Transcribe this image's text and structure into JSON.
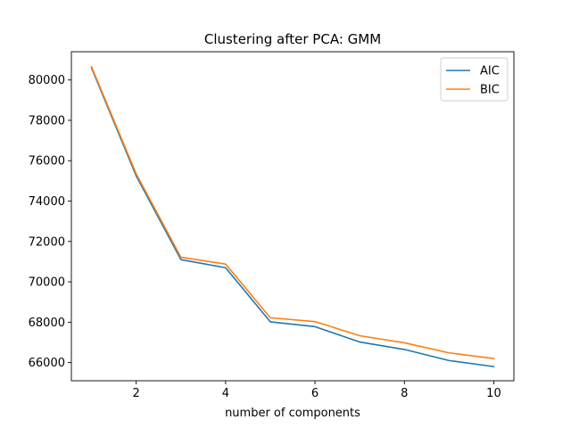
{
  "chart_data": {
    "type": "line",
    "title": "Clustering after PCA: GMM",
    "xlabel": "number of components",
    "ylabel": "",
    "x": [
      1,
      2,
      3,
      4,
      5,
      6,
      7,
      8,
      9,
      10
    ],
    "xlim": [
      0.55,
      10.45
    ],
    "ylim": [
      65100,
      81400
    ],
    "xticks": [
      2,
      4,
      6,
      8,
      10
    ],
    "yticks": [
      66000,
      68000,
      70000,
      72000,
      74000,
      76000,
      78000,
      80000
    ],
    "grid": false,
    "legend_position": "upper right",
    "series": [
      {
        "name": "AIC",
        "color": "#1f77b4",
        "values": [
          80600,
          75250,
          71100,
          70700,
          68020,
          67780,
          67020,
          66650,
          66100,
          65800
        ]
      },
      {
        "name": "BIC",
        "color": "#ff7f0e",
        "values": [
          80660,
          75350,
          71220,
          70880,
          68220,
          68030,
          67330,
          66980,
          66480,
          66200
        ]
      }
    ]
  }
}
